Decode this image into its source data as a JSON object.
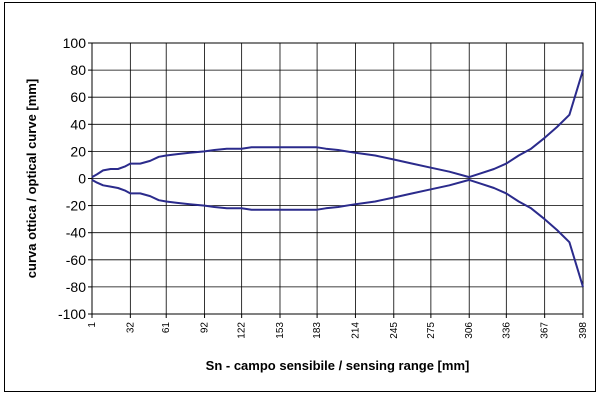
{
  "chart_data": {
    "type": "line",
    "xlabel": "Sn - campo sensibile / sensing range [mm]",
    "ylabel": "curva ottica / optical curve [mm]",
    "ylim": [
      -100,
      100
    ],
    "y_ticks": [
      100,
      80,
      60,
      40,
      20,
      0,
      -20,
      -40,
      -60,
      -80,
      -100
    ],
    "x_ticks": [
      "1",
      "32",
      "61",
      "92",
      "122",
      "153",
      "183",
      "214",
      "245",
      "275",
      "306",
      "336",
      "367",
      "398"
    ],
    "grid": true,
    "series": [
      {
        "x": [
          1,
          5,
          10,
          16,
          22,
          28,
          32,
          40,
          48,
          55,
          61,
          70,
          80,
          92,
          100,
          110,
          122,
          130,
          138,
          153,
          168,
          183,
          190,
          200,
          214,
          222,
          230,
          245,
          260,
          275,
          290,
          306,
          316,
          326,
          336,
          346,
          356,
          367,
          377,
          387,
          398
        ],
        "values": [
          1,
          3,
          6,
          7,
          7,
          9,
          11,
          11,
          13,
          16,
          17,
          18,
          19,
          20,
          21,
          22,
          22,
          23,
          23,
          23,
          23,
          23,
          22,
          21,
          19,
          18,
          17,
          14,
          11,
          8,
          5,
          1,
          4,
          7,
          11,
          17,
          22,
          30,
          38,
          47,
          80
        ],
        "color": "#2b2b8c"
      },
      {
        "x": [
          1,
          5,
          10,
          16,
          22,
          28,
          32,
          40,
          48,
          55,
          61,
          70,
          80,
          92,
          100,
          110,
          122,
          130,
          138,
          153,
          168,
          183,
          190,
          200,
          214,
          222,
          230,
          245,
          260,
          275,
          290,
          306,
          316,
          326,
          336,
          346,
          356,
          367,
          377,
          387,
          398
        ],
        "values": [
          -1,
          -3,
          -5,
          -6,
          -7,
          -9,
          -11,
          -11,
          -13,
          -16,
          -17,
          -18,
          -19,
          -20,
          -21,
          -22,
          -22,
          -23,
          -23,
          -23,
          -23,
          -23,
          -22,
          -21,
          -19,
          -18,
          -17,
          -14,
          -11,
          -8,
          -5,
          -1,
          -4,
          -7,
          -11,
          -17,
          -22,
          -30,
          -38,
          -47,
          -80
        ],
        "color": "#2b2b8c"
      }
    ]
  }
}
